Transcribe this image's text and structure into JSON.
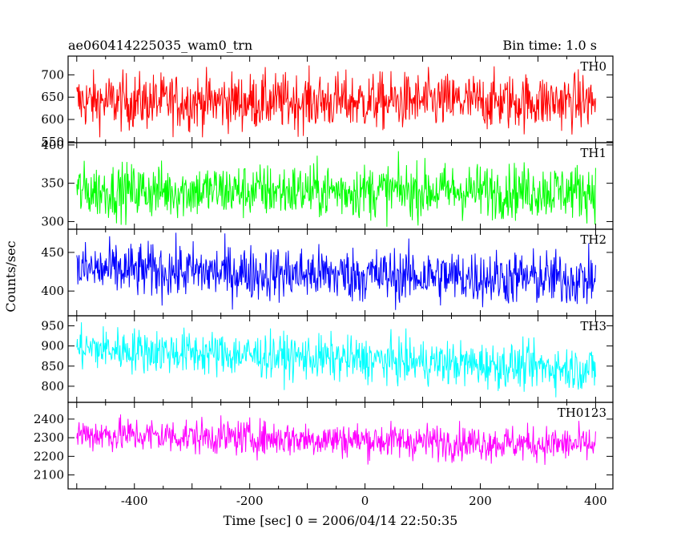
{
  "chart_data": {
    "type": "line",
    "title": "ae060414225035_wam0_trn",
    "subtitle": "Bin time: 1.0 s",
    "xlabel": "Time [sec] 0 = 2006/04/14 22:50:35",
    "ylabel": "Counts/sec",
    "xlim": [
      -515,
      430
    ],
    "x_range": [
      -500,
      400
    ],
    "bin": 1.0,
    "x_ticks": [
      -400,
      -200,
      0,
      200,
      400
    ],
    "grid": false,
    "panels": [
      {
        "name": "TH0",
        "color": "#ff0000",
        "ylim": [
          548,
          742
        ],
        "y_ticks": [
          700,
          650,
          600,
          550
        ],
        "start": 640,
        "end": 640,
        "noise": 32,
        "min": 560,
        "max": 742
      },
      {
        "name": "TH1",
        "color": "#00ff00",
        "ylim": [
          290,
          403
        ],
        "y_ticks": [
          400,
          350,
          300
        ],
        "start": 340,
        "end": 340,
        "noise": 18,
        "min": 285,
        "max": 403
      },
      {
        "name": "TH2",
        "color": "#0000ff",
        "ylim": [
          368,
          480
        ],
        "y_ticks": [
          450,
          400
        ],
        "start": 428,
        "end": 415,
        "noise": 18,
        "min": 368,
        "max": 480
      },
      {
        "name": "TH3",
        "color": "#00ffff",
        "ylim": [
          760,
          975
        ],
        "y_ticks": [
          950,
          900,
          850,
          800
        ],
        "start": 895,
        "end": 842,
        "noise": 28,
        "min": 765,
        "max": 975
      },
      {
        "name": "TH0123",
        "color": "#ff00ff",
        "ylim": [
          2025,
          2490
        ],
        "y_ticks": [
          2400,
          2300,
          2200,
          2100
        ],
        "start": 2320,
        "end": 2260,
        "noise": 48,
        "min": 2050,
        "max": 2490
      }
    ]
  }
}
